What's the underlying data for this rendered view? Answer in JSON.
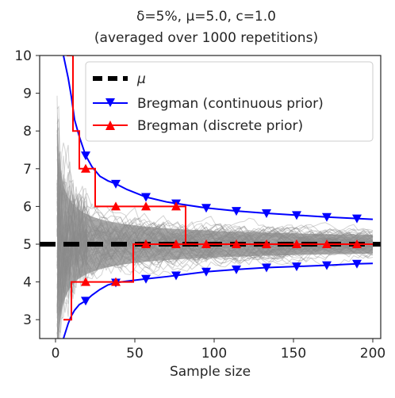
{
  "chart_data": {
    "type": "line",
    "title_line1": "δ=5%, μ=5.0, c=1.0",
    "title_line2": "(averaged over 1000 repetitions)",
    "xlabel": "Sample size",
    "ylabel": "",
    "xlim": [
      -10,
      205
    ],
    "ylim": [
      2.5,
      10
    ],
    "xticks": [
      0,
      50,
      100,
      150,
      200
    ],
    "yticks": [
      3,
      4,
      5,
      6,
      7,
      8,
      9,
      10
    ],
    "grid": false,
    "legend_position": "top-right",
    "colors": {
      "mu": "#000000",
      "continuous": "#0000ff",
      "discrete": "#ff0000",
      "trajectories": "#808080"
    },
    "mean": 5.0,
    "series": [
      {
        "name": "μ",
        "style": "dashed",
        "x": [
          -10,
          205
        ],
        "y": [
          5.0,
          5.0
        ]
      },
      {
        "name": "Bregman (continuous prior)",
        "marker": "triangle-down",
        "upper": {
          "x": [
            5,
            8,
            10,
            12,
            15,
            19,
            23,
            28,
            33,
            38,
            45,
            57,
            70,
            76,
            95,
            114,
            133,
            152,
            171,
            190,
            200
          ],
          "y": [
            10.0,
            9.4,
            8.9,
            8.3,
            7.85,
            7.35,
            7.05,
            6.8,
            6.68,
            6.6,
            6.45,
            6.25,
            6.12,
            6.08,
            5.96,
            5.88,
            5.82,
            5.77,
            5.72,
            5.68,
            5.66
          ]
        },
        "lower": {
          "x": [
            5,
            8,
            10,
            12,
            15,
            19,
            23,
            28,
            33,
            38,
            45,
            57,
            70,
            76,
            95,
            114,
            133,
            152,
            171,
            190,
            200
          ],
          "y": [
            2.5,
            2.9,
            3.1,
            3.25,
            3.4,
            3.5,
            3.65,
            3.8,
            3.92,
            3.98,
            4.02,
            4.08,
            4.14,
            4.17,
            4.27,
            4.33,
            4.38,
            4.41,
            4.44,
            4.48,
            4.49
          ]
        },
        "marker_x": [
          19,
          38,
          57,
          76,
          95,
          114,
          133,
          152,
          171,
          190
        ]
      },
      {
        "name": "Bregman (discrete prior)",
        "marker": "triangle-up",
        "upper": {
          "x": [
            7,
            11,
            11,
            15,
            15,
            25,
            25,
            82,
            82,
            200
          ],
          "y": [
            10.0,
            10.0,
            8.0,
            8.0,
            7.0,
            7.0,
            6.0,
            6.0,
            5.0,
            5.0
          ]
        },
        "lower": {
          "x": [
            5,
            10,
            10,
            21,
            21,
            39,
            39,
            49,
            49,
            200
          ],
          "y": [
            3.0,
            3.0,
            4.0,
            4.0,
            4.0,
            4.0,
            4.0,
            4.0,
            5.0,
            5.0
          ]
        },
        "marker_points": [
          [
            19,
            7.0
          ],
          [
            38,
            6.0
          ],
          [
            57,
            6.0
          ],
          [
            76,
            6.0
          ],
          [
            95,
            5.0
          ],
          [
            114,
            5.0
          ],
          [
            133,
            5.0
          ],
          [
            152,
            5.0
          ],
          [
            171,
            5.0
          ],
          [
            190,
            5.0
          ],
          [
            19,
            4.0
          ],
          [
            38,
            4.0
          ],
          [
            57,
            5.0
          ],
          [
            76,
            5.0
          ]
        ]
      }
    ]
  }
}
